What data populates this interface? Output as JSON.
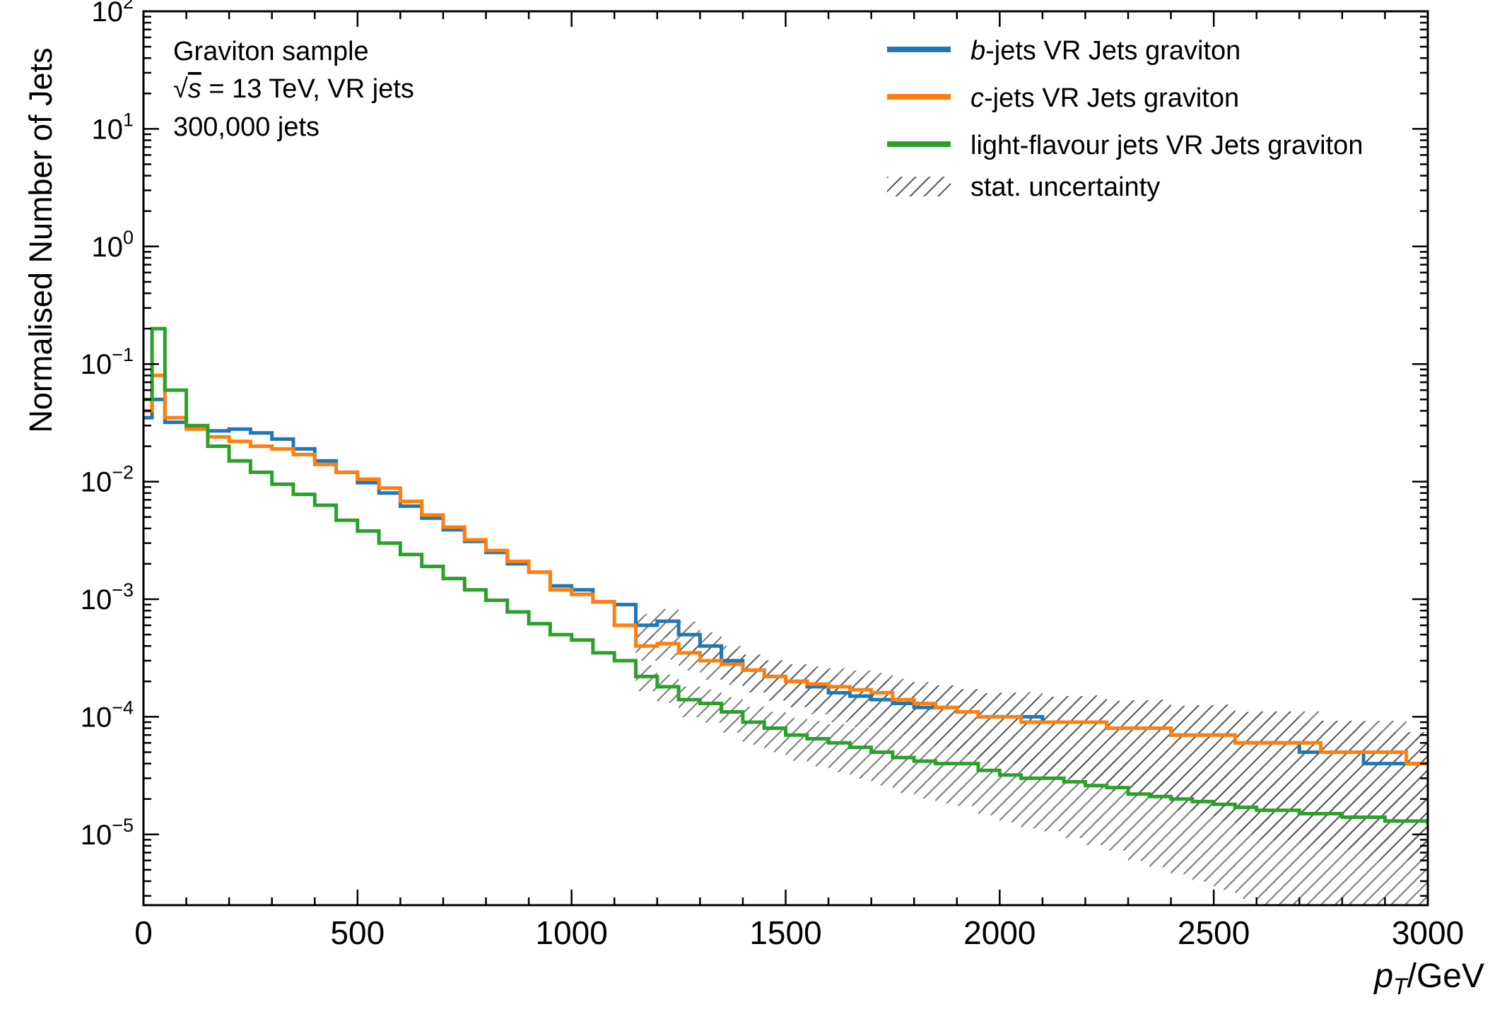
{
  "chart_data": {
    "type": "line",
    "title": "",
    "xlabel": "",
    "ylabel": "Normalised Number of Jets",
    "xlabel_main": "p",
    "xlabel_sub": "T",
    "xlabel_unit": "/GeV",
    "xlim": [
      0,
      3000
    ],
    "ylim": [
      2.5e-06,
      100
    ],
    "yscale": "log",
    "grid": false,
    "legend_position": "top-right",
    "x_ticks": [
      0,
      500,
      1000,
      1500,
      2000,
      2500,
      3000
    ],
    "x_tick_labels": [
      "0",
      "500",
      "1000",
      "1500",
      "2000",
      "2500",
      "3000"
    ],
    "y_ticks": [
      {
        "base": "10",
        "exp": "2",
        "value": 100
      },
      {
        "base": "10",
        "exp": "1",
        "value": 10
      },
      {
        "base": "10",
        "exp": "0",
        "value": 1
      },
      {
        "base": "10",
        "exp": "−1",
        "value": 0.1
      },
      {
        "base": "10",
        "exp": "−2",
        "value": 0.01
      },
      {
        "base": "10",
        "exp": "−3",
        "value": 0.001
      },
      {
        "base": "10",
        "exp": "−4",
        "value": 0.0001
      },
      {
        "base": "10",
        "exp": "−5",
        "value": 1e-05
      }
    ],
    "annotations": {
      "sample": "Graviton sample",
      "sqrt_symbol": "√",
      "sqrt_arg": "s",
      "energy": " = 13 TeV, VR jets",
      "njets": "300,000 jets"
    },
    "legend": [
      {
        "italic_prefix": "b",
        "text": "-jets VR Jets graviton",
        "color": "#1f77b4",
        "style": "line"
      },
      {
        "italic_prefix": "c",
        "text": "-jets VR Jets graviton",
        "color": "#ff7f0e",
        "style": "line"
      },
      {
        "italic_prefix": "",
        "text": "light-flavour jets VR Jets graviton",
        "color": "#2ca02c",
        "style": "line"
      },
      {
        "italic_prefix": "",
        "text": "stat. uncertainty",
        "color": "#555555",
        "style": "hatch"
      }
    ],
    "series": [
      {
        "name": "b-jets VR Jets graviton",
        "color": "#1f77b4",
        "x": [
          0,
          20,
          50,
          100,
          150,
          200,
          250,
          300,
          350,
          400,
          450,
          500,
          550,
          600,
          650,
          700,
          750,
          800,
          850,
          900,
          950,
          1000,
          1050,
          1100,
          1150,
          1200,
          1250,
          1300,
          1350,
          1400,
          1450,
          1500,
          1550,
          1600,
          1650,
          1700,
          1750,
          1800,
          1850,
          1900,
          1950,
          2000,
          2050,
          2100,
          2150,
          2200,
          2250,
          2300,
          2350,
          2400,
          2450,
          2500,
          2550,
          2600,
          2650,
          2700,
          2750,
          2800,
          2850,
          2900,
          2950,
          3000
        ],
        "y": [
          0.035,
          0.05,
          0.032,
          0.029,
          0.027,
          0.028,
          0.026,
          0.023,
          0.019,
          0.015,
          0.012,
          0.0098,
          0.008,
          0.0062,
          0.0049,
          0.0039,
          0.0031,
          0.0025,
          0.002,
          0.0017,
          0.0013,
          0.0012,
          0.00095,
          0.0009,
          0.0006,
          0.00065,
          0.0005,
          0.0004,
          0.0003,
          0.00025,
          0.00022,
          0.0002,
          0.00018,
          0.00016,
          0.00015,
          0.00014,
          0.00013,
          0.00012,
          0.00012,
          0.00011,
          0.0001,
          0.0001,
          0.0001,
          9e-05,
          9e-05,
          9e-05,
          8e-05,
          8e-05,
          8e-05,
          7e-05,
          7e-05,
          7e-05,
          6e-05,
          6e-05,
          6e-05,
          5e-05,
          5e-05,
          5e-05,
          4e-05,
          4e-05,
          4e-05,
          4e-05
        ]
      },
      {
        "name": "c-jets VR Jets graviton",
        "color": "#ff7f0e",
        "x": [
          0,
          20,
          50,
          100,
          150,
          200,
          250,
          300,
          350,
          400,
          450,
          500,
          550,
          600,
          650,
          700,
          750,
          800,
          850,
          900,
          950,
          1000,
          1050,
          1100,
          1150,
          1200,
          1250,
          1300,
          1350,
          1400,
          1450,
          1500,
          1550,
          1600,
          1650,
          1700,
          1750,
          1800,
          1850,
          1900,
          1950,
          2000,
          2050,
          2100,
          2150,
          2200,
          2250,
          2300,
          2350,
          2400,
          2450,
          2500,
          2550,
          2600,
          2650,
          2700,
          2750,
          2800,
          2850,
          2900,
          2950,
          3000
        ],
        "y": [
          0.04,
          0.08,
          0.035,
          0.028,
          0.024,
          0.022,
          0.02,
          0.019,
          0.017,
          0.014,
          0.012,
          0.0105,
          0.0088,
          0.0068,
          0.0052,
          0.0041,
          0.0032,
          0.0026,
          0.0021,
          0.0017,
          0.0012,
          0.0011,
          0.00095,
          0.0006,
          0.0004,
          0.00042,
          0.00035,
          0.0003,
          0.00028,
          0.00025,
          0.00022,
          0.0002,
          0.00019,
          0.00018,
          0.00017,
          0.00016,
          0.00014,
          0.00013,
          0.00012,
          0.00011,
          0.0001,
          0.0001,
          9e-05,
          9e-05,
          9e-05,
          9e-05,
          8e-05,
          8e-05,
          8e-05,
          7e-05,
          7e-05,
          7e-05,
          6e-05,
          6e-05,
          6e-05,
          6e-05,
          5e-05,
          5e-05,
          5e-05,
          5e-05,
          4e-05,
          4e-05
        ]
      },
      {
        "name": "light-flavour jets VR Jets graviton",
        "color": "#2ca02c",
        "x": [
          0,
          20,
          50,
          100,
          150,
          200,
          250,
          300,
          350,
          400,
          450,
          500,
          550,
          600,
          650,
          700,
          750,
          800,
          850,
          900,
          950,
          1000,
          1050,
          1100,
          1150,
          1200,
          1250,
          1300,
          1350,
          1400,
          1450,
          1500,
          1550,
          1600,
          1650,
          1700,
          1750,
          1800,
          1850,
          1900,
          1950,
          2000,
          2050,
          2100,
          2150,
          2200,
          2250,
          2300,
          2350,
          2400,
          2450,
          2500,
          2550,
          2600,
          2650,
          2700,
          2750,
          2800,
          2850,
          2900,
          2950,
          3000
        ],
        "y": [
          0.05,
          0.2,
          0.06,
          0.03,
          0.02,
          0.015,
          0.012,
          0.0095,
          0.0078,
          0.0063,
          0.0047,
          0.0038,
          0.003,
          0.0024,
          0.0019,
          0.0015,
          0.0012,
          0.00098,
          0.00078,
          0.00062,
          0.0005,
          0.00045,
          0.00035,
          0.0003,
          0.00022,
          0.00018,
          0.00014,
          0.00013,
          0.00011,
          9e-05,
          8e-05,
          7e-05,
          6.5e-05,
          6e-05,
          5.5e-05,
          5e-05,
          4.5e-05,
          4.2e-05,
          4e-05,
          4e-05,
          3.5e-05,
          3.2e-05,
          3e-05,
          3e-05,
          2.8e-05,
          2.6e-05,
          2.5e-05,
          2.2e-05,
          2.1e-05,
          2e-05,
          1.9e-05,
          1.8e-05,
          1.7e-05,
          1.6e-05,
          1.6e-05,
          1.5e-05,
          1.5e-05,
          1.4e-05,
          1.4e-05,
          1.3e-05,
          1.3e-05,
          1.2e-05
        ]
      }
    ]
  }
}
